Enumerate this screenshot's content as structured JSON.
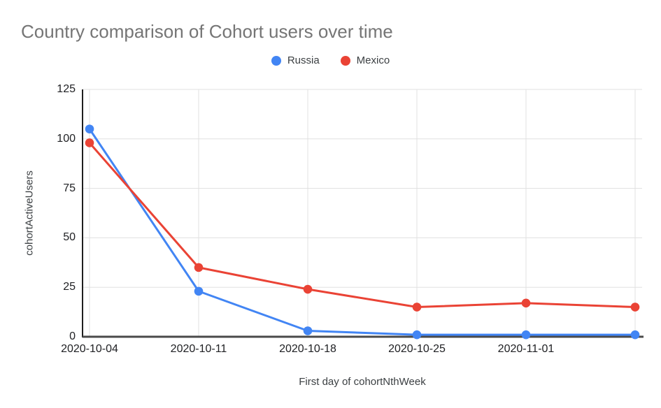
{
  "title": "Country comparison of Cohort users over time",
  "legend": {
    "items": [
      {
        "label": "Russia",
        "color": "#4285F4"
      },
      {
        "label": "Mexico",
        "color": "#EA4335"
      }
    ]
  },
  "chart_data": {
    "type": "line",
    "title": "Country comparison of Cohort users over time",
    "xlabel": "First day of cohortNthWeek",
    "ylabel": "cohortActiveUsers",
    "x": [
      "2020-10-04",
      "2020-10-11",
      "2020-10-18",
      "2020-10-25",
      "2020-11-01",
      ""
    ],
    "series": [
      {
        "name": "Russia",
        "color": "#4285F4",
        "values": [
          105,
          23,
          3,
          1,
          1,
          1
        ]
      },
      {
        "name": "Mexico",
        "color": "#EA4335",
        "values": [
          98,
          35,
          24,
          15,
          17,
          15
        ]
      }
    ],
    "ylim": [
      0,
      125
    ],
    "y_ticks": [
      0,
      25,
      50,
      75,
      100,
      125
    ],
    "grid": true,
    "legend_position": "top",
    "marker": "circle"
  },
  "colors": {
    "background": "#ffffff",
    "title_text": "#757575",
    "tick_text": "#202124",
    "axis_title_text": "#3c4043",
    "gridline": "#e0e0e0",
    "y_axis_line": "#1f1f1f",
    "baseline": "#4a4a4a"
  }
}
